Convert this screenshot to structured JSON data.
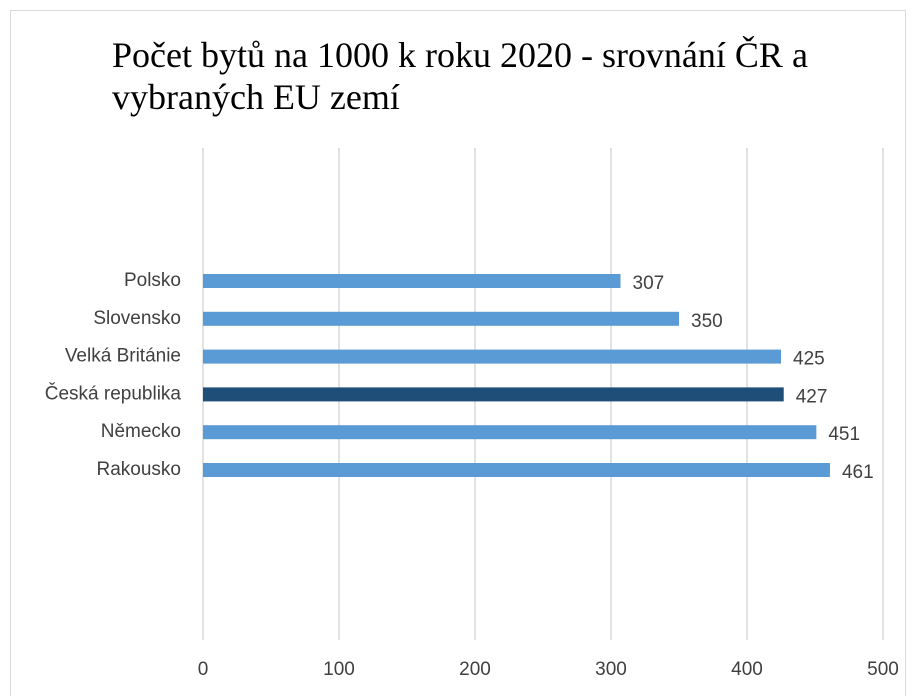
{
  "chart_data": {
    "type": "barh",
    "title": "Počet bytů na 1000 k roku 2020 - srovnání ČR a vybraných EU zemí",
    "categories": [
      "Polsko",
      "Slovensko",
      "Velká Británie",
      "Česká republika",
      "Německo",
      "Rakousko"
    ],
    "values": [
      307,
      350,
      425,
      427,
      451,
      461
    ],
    "colors": [
      "#5b9bd5",
      "#5b9bd5",
      "#5b9bd5",
      "#1f4e79",
      "#5b9bd5",
      "#5b9bd5"
    ],
    "xlim": [
      0,
      500
    ],
    "xticks": [
      0,
      100,
      200,
      300,
      400,
      500
    ],
    "grid": true
  }
}
